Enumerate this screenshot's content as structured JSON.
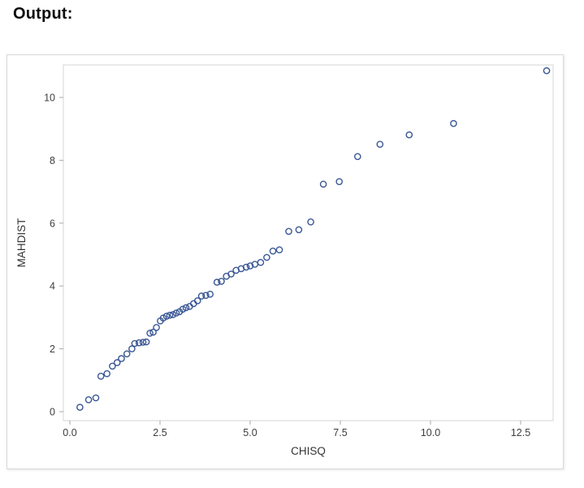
{
  "page": {
    "heading": "Output:"
  },
  "colors": {
    "marker_stroke": "#3a5795",
    "panel_border": "#d4d4d4",
    "tick_mark": "#a9a9a9",
    "text": "#3d3d3d",
    "figure_border": "#d9d9d9",
    "background": "#ffffff"
  },
  "chart_data": {
    "type": "scatter",
    "title": "",
    "xlabel": "CHISQ",
    "ylabel": "MAHDIST",
    "xlim": [
      -0.2,
      13.4
    ],
    "ylim": [
      -0.3,
      11.0
    ],
    "grid": false,
    "legend": false,
    "marker": "open-circle",
    "x_ticks": [
      0.0,
      2.5,
      5.0,
      7.5,
      10.0,
      12.5
    ],
    "x_tick_labels": [
      "0.0",
      "2.5",
      "5.0",
      "7.5",
      "10.0",
      "12.5"
    ],
    "y_ticks": [
      0,
      2,
      4,
      6,
      8,
      10
    ],
    "y_tick_labels": [
      "0",
      "2",
      "4",
      "6",
      "8",
      "10"
    ],
    "points": [
      [
        0.28,
        0.14
      ],
      [
        0.52,
        0.38
      ],
      [
        0.72,
        0.44
      ],
      [
        0.86,
        1.13
      ],
      [
        1.03,
        1.21
      ],
      [
        1.18,
        1.45
      ],
      [
        1.31,
        1.56
      ],
      [
        1.43,
        1.69
      ],
      [
        1.58,
        1.84
      ],
      [
        1.72,
        2.0
      ],
      [
        1.8,
        2.17
      ],
      [
        1.92,
        2.19
      ],
      [
        2.03,
        2.21
      ],
      [
        2.12,
        2.22
      ],
      [
        2.22,
        2.5
      ],
      [
        2.31,
        2.53
      ],
      [
        2.4,
        2.68
      ],
      [
        2.51,
        2.89
      ],
      [
        2.59,
        2.98
      ],
      [
        2.68,
        3.04
      ],
      [
        2.77,
        3.07
      ],
      [
        2.86,
        3.09
      ],
      [
        2.95,
        3.14
      ],
      [
        3.04,
        3.18
      ],
      [
        3.13,
        3.26
      ],
      [
        3.22,
        3.31
      ],
      [
        3.32,
        3.35
      ],
      [
        3.43,
        3.44
      ],
      [
        3.54,
        3.53
      ],
      [
        3.65,
        3.68
      ],
      [
        3.77,
        3.7
      ],
      [
        3.89,
        3.74
      ],
      [
        4.08,
        4.12
      ],
      [
        4.2,
        4.15
      ],
      [
        4.34,
        4.31
      ],
      [
        4.47,
        4.38
      ],
      [
        4.61,
        4.5
      ],
      [
        4.75,
        4.55
      ],
      [
        4.89,
        4.6
      ],
      [
        5.0,
        4.64
      ],
      [
        5.13,
        4.69
      ],
      [
        5.29,
        4.75
      ],
      [
        5.46,
        4.91
      ],
      [
        5.63,
        5.11
      ],
      [
        5.81,
        5.15
      ],
      [
        6.07,
        5.74
      ],
      [
        6.35,
        5.79
      ],
      [
        6.68,
        6.04
      ],
      [
        7.03,
        7.24
      ],
      [
        7.47,
        7.32
      ],
      [
        7.98,
        8.12
      ],
      [
        8.6,
        8.51
      ],
      [
        9.41,
        8.81
      ],
      [
        10.64,
        9.17
      ],
      [
        13.22,
        10.85
      ]
    ]
  }
}
